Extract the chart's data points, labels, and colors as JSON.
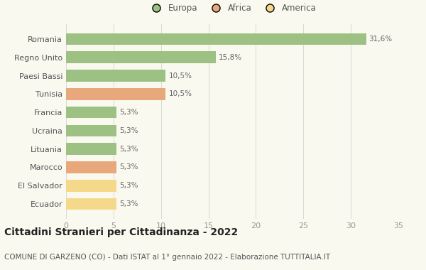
{
  "categories": [
    "Ecuador",
    "El Salvador",
    "Marocco",
    "Lituania",
    "Ucraina",
    "Francia",
    "Tunisia",
    "Paesi Bassi",
    "Regno Unito",
    "Romania"
  ],
  "values": [
    5.3,
    5.3,
    5.3,
    5.3,
    5.3,
    5.3,
    10.5,
    10.5,
    15.8,
    31.6
  ],
  "colors": [
    "#f5d98a",
    "#f5d98a",
    "#e8a87c",
    "#9dc183",
    "#9dc183",
    "#9dc183",
    "#e8a87c",
    "#9dc183",
    "#9dc183",
    "#9dc183"
  ],
  "labels": [
    "5,3%",
    "5,3%",
    "5,3%",
    "5,3%",
    "5,3%",
    "5,3%",
    "10,5%",
    "10,5%",
    "15,8%",
    "31,6%"
  ],
  "xlim": [
    0,
    35
  ],
  "xticks": [
    0,
    5,
    10,
    15,
    20,
    25,
    30,
    35
  ],
  "legend_labels": [
    "Europa",
    "Africa",
    "America"
  ],
  "legend_colors": [
    "#9dc183",
    "#e8a87c",
    "#f5d98a"
  ],
  "title": "Cittadini Stranieri per Cittadinanza - 2022",
  "subtitle": "COMUNE DI GARZENO (CO) - Dati ISTAT al 1° gennaio 2022 - Elaborazione TUTTITALIA.IT",
  "background_color": "#f9f9f0",
  "bar_edge_color": "none",
  "label_fontsize": 7.5,
  "ytick_fontsize": 8,
  "xtick_fontsize": 8,
  "title_fontsize": 10,
  "subtitle_fontsize": 7.5,
  "legend_fontsize": 8.5
}
